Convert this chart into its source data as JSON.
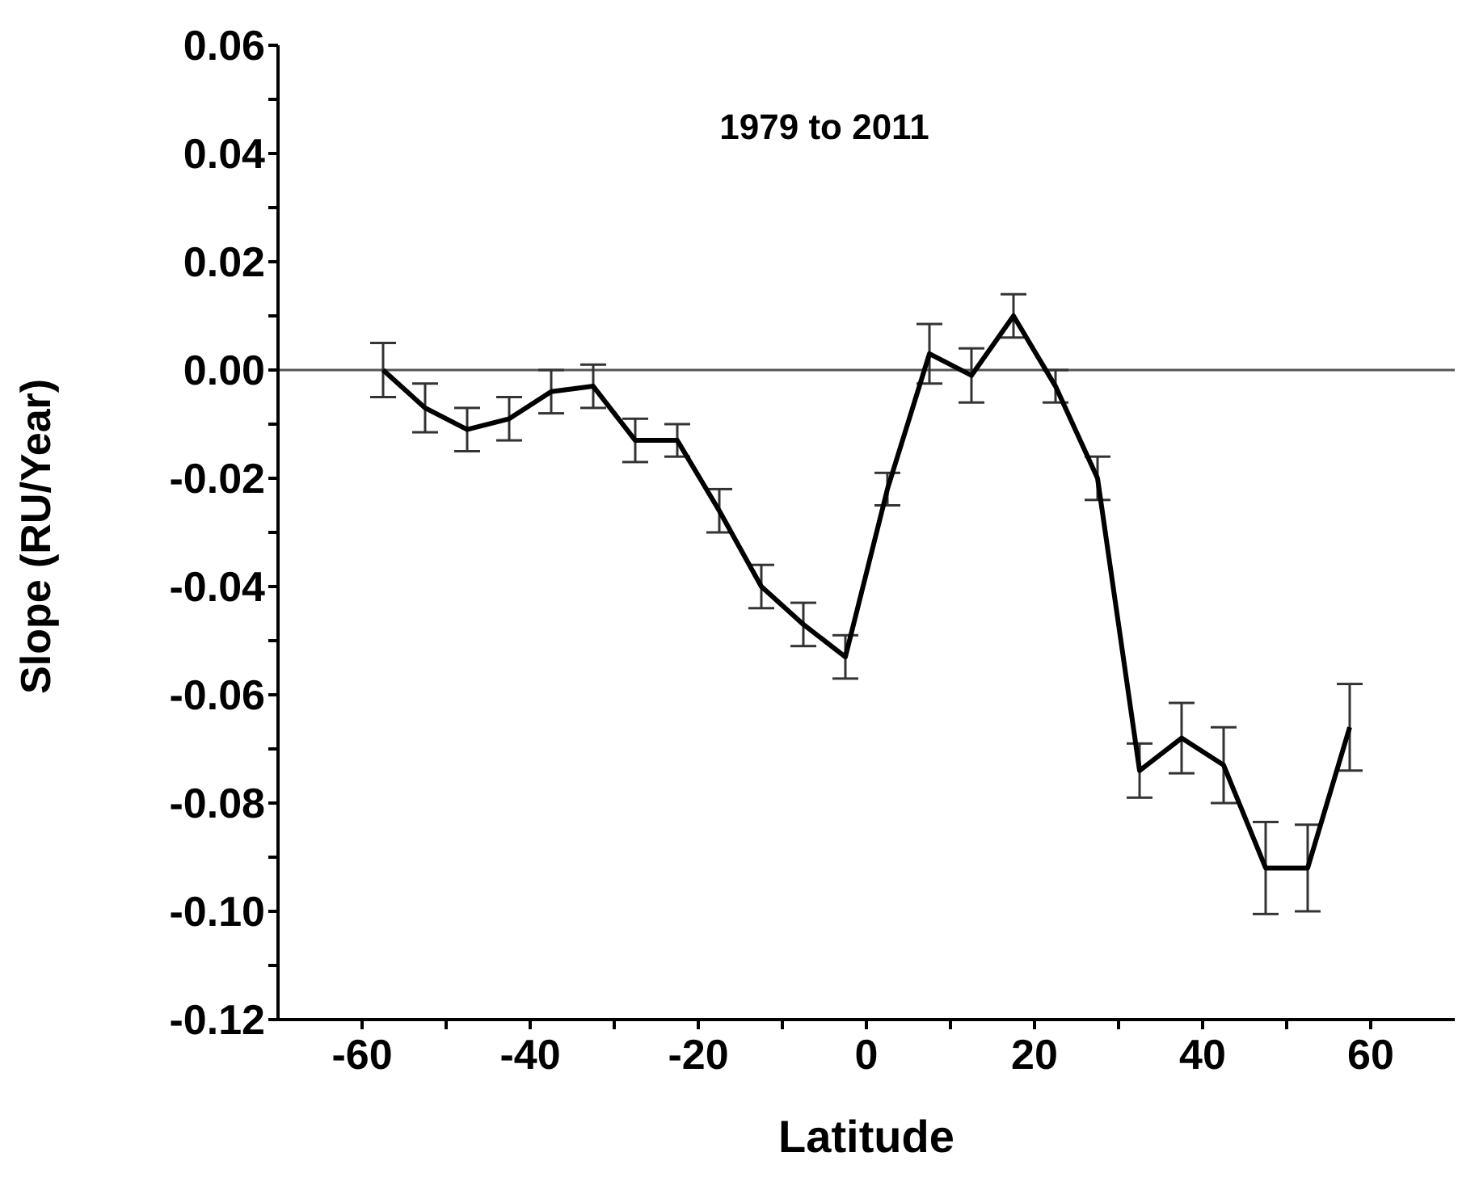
{
  "chart_data": {
    "type": "line",
    "title": "1979 to 2011",
    "xlabel": "Latitude",
    "ylabel": "Slope (RU/Year)",
    "x": [
      -57.5,
      -52.5,
      -47.5,
      -42.5,
      -37.5,
      -32.5,
      -27.5,
      -22.5,
      -17.5,
      -12.5,
      -7.5,
      -2.5,
      2.5,
      7.5,
      12.5,
      17.5,
      22.5,
      27.5,
      32.5,
      37.5,
      42.5,
      47.5,
      52.5,
      57.5
    ],
    "series": [
      {
        "color": "#000000",
        "values": [
          0.0,
          -0.007,
          -0.011,
          -0.009,
          -0.004,
          -0.003,
          -0.013,
          -0.013,
          -0.026,
          -0.04,
          -0.047,
          -0.053,
          -0.022,
          0.003,
          -0.001,
          0.01,
          -0.003,
          -0.02,
          -0.074,
          -0.068,
          -0.073,
          -0.092,
          -0.092,
          -0.066
        ],
        "errors": [
          0.005,
          0.0045,
          0.004,
          0.004,
          0.004,
          0.004,
          0.004,
          0.003,
          0.004,
          0.004,
          0.004,
          0.004,
          0.003,
          0.0055,
          0.005,
          0.004,
          0.003,
          0.004,
          0.005,
          0.0065,
          0.007,
          0.0085,
          0.008,
          0.008
        ]
      }
    ],
    "xlim": [
      -70,
      70
    ],
    "xticks": [
      -60,
      {
        "value": -50,
        "label": null
      },
      -40,
      {
        "value": -30,
        "label": null
      },
      -20,
      {
        "value": -10,
        "label": null
      },
      0,
      {
        "value": 10,
        "label": null
      },
      20,
      {
        "value": 30,
        "label": null
      },
      40,
      {
        "value": 50,
        "label": null
      },
      60
    ],
    "ylim": [
      -0.12,
      0.06
    ],
    "yticks": [
      {
        "value": -0.12,
        "label": "-0.12"
      },
      {
        "value": -0.11,
        "label": null
      },
      {
        "value": -0.1,
        "label": "-0.10"
      },
      {
        "value": -0.09,
        "label": null
      },
      {
        "value": -0.08,
        "label": "-0.08"
      },
      {
        "value": -0.07,
        "label": null
      },
      {
        "value": -0.06,
        "label": "-0.06"
      },
      {
        "value": -0.05,
        "label": null
      },
      {
        "value": -0.04,
        "label": "-0.04"
      },
      {
        "value": -0.03,
        "label": null
      },
      {
        "value": -0.02,
        "label": "-0.02"
      },
      {
        "value": -0.01,
        "label": null
      },
      {
        "value": 0,
        "label": "0.00"
      },
      {
        "value": 0.01,
        "label": null
      },
      {
        "value": 0.02,
        "label": "0.02"
      },
      {
        "value": 0.03,
        "label": null
      },
      {
        "value": 0.04,
        "label": "0.04"
      },
      {
        "value": 0.05,
        "label": null
      },
      {
        "value": 0.06,
        "label": "0.06"
      }
    ],
    "ref_lines": [
      {
        "axis": "y",
        "value": 0,
        "color": "#555555"
      }
    ],
    "grid": false,
    "legend": false,
    "marker": "none",
    "line_style": "solid"
  }
}
